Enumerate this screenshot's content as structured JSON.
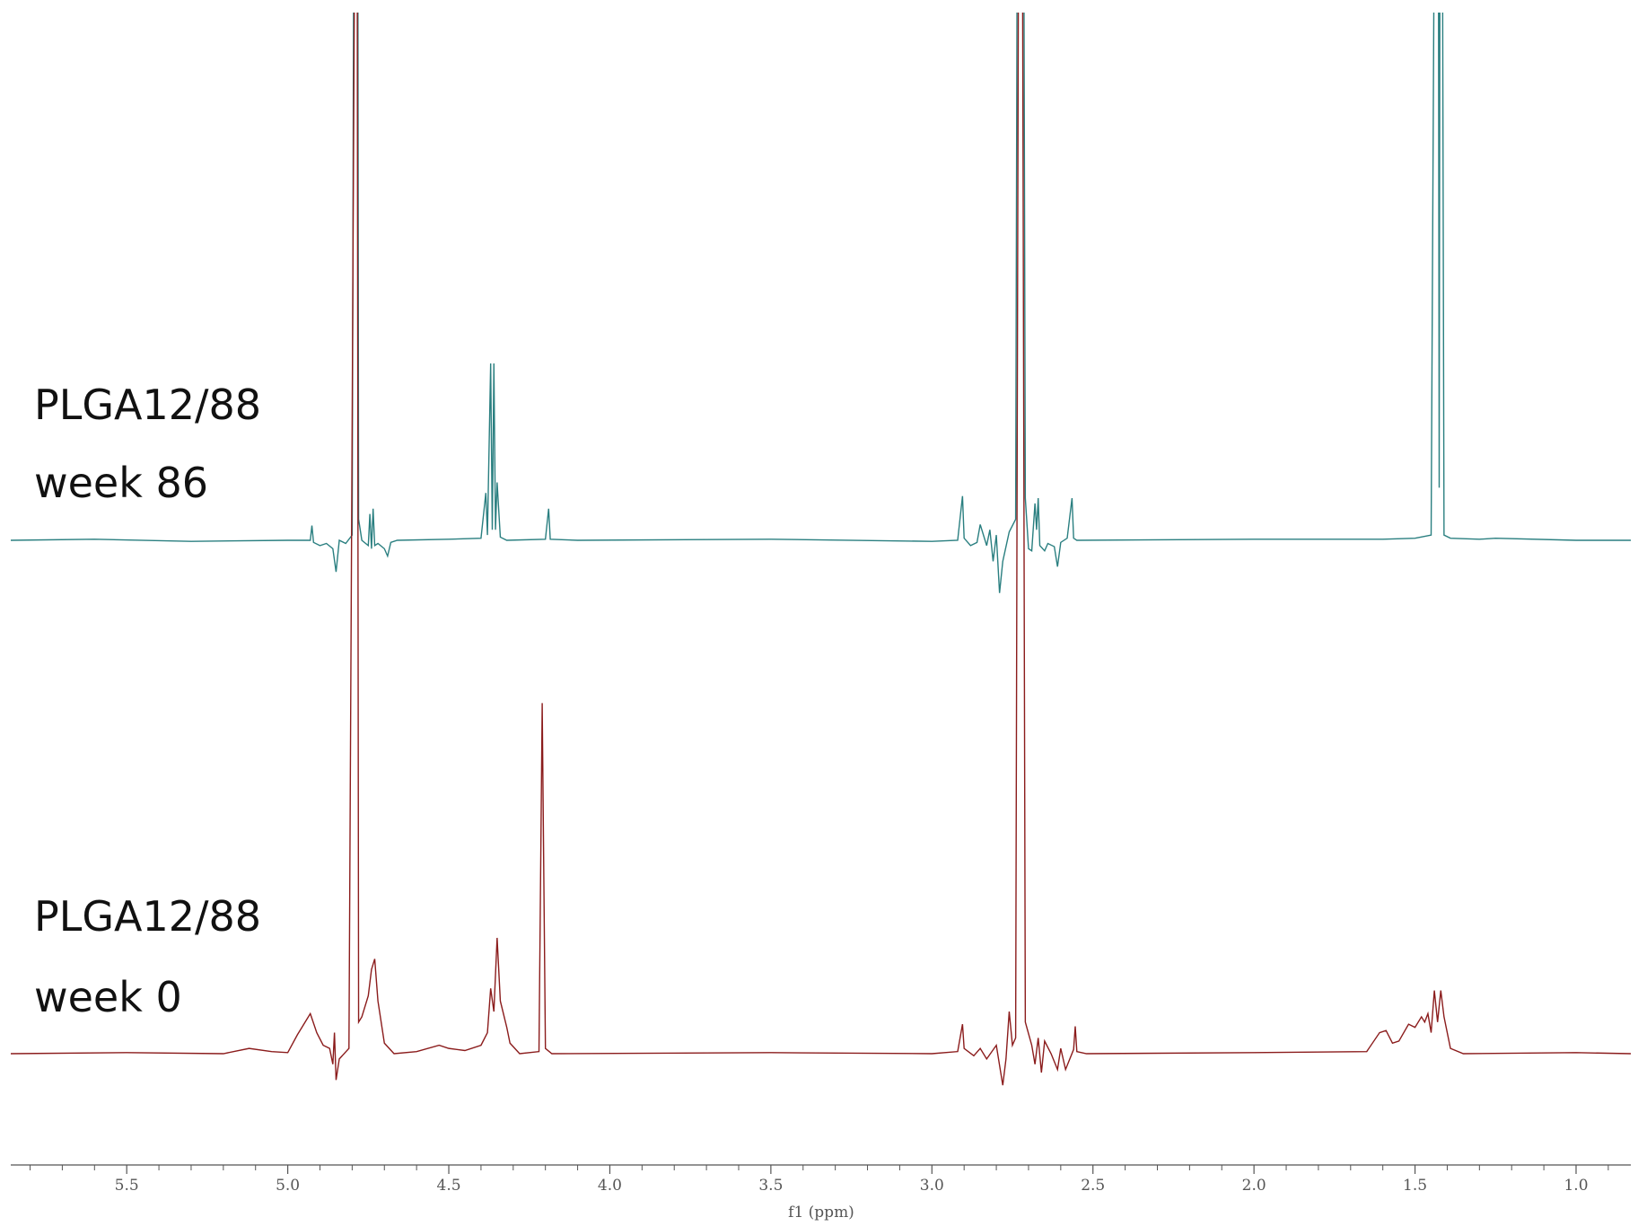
{
  "chart_data": {
    "type": "line",
    "xlabel": "f1 (ppm)",
    "xlim": [
      5.86,
      0.83
    ],
    "xticks": [
      5.5,
      {
        "value": 5,
        "label": "5.0"
      },
      4.5,
      {
        "value": 4,
        "label": "4.0"
      },
      3.5,
      {
        "value": 3,
        "label": "3.0"
      },
      2.5,
      {
        "value": 2,
        "label": "2.0"
      },
      1.5,
      {
        "value": 1,
        "label": "1.0"
      }
    ],
    "xminorticks": [
      5.8,
      5.7,
      5.6,
      5.4,
      5.3,
      5.2,
      5.1,
      4.9,
      4.8,
      4.7,
      4.6,
      4.4,
      4.3,
      4.2,
      4.1,
      3.9,
      3.8,
      3.7,
      3.6,
      3.4,
      3.3,
      3.2,
      3.1,
      2.9,
      2.8,
      2.7,
      2.6,
      2.4,
      2.3,
      2.2,
      2.1,
      1.9,
      1.8,
      1.7,
      1.6,
      1.4,
      1.3,
      1.2,
      1.1,
      0.9
    ],
    "series": [
      {
        "label": [
          "PLGA12/88",
          "week 86"
        ],
        "color": "#2a7f80",
        "x": [
          5.86,
          5.6,
          5.3,
          5.0,
          4.93,
          4.925,
          4.92,
          4.9,
          4.88,
          4.86,
          4.85,
          4.84,
          4.82,
          4.8,
          4.79,
          4.785,
          4.78,
          4.77,
          4.75,
          4.745,
          4.74,
          4.735,
          4.73,
          4.72,
          4.7,
          4.69,
          4.68,
          4.66,
          4.5,
          4.4,
          4.385,
          4.38,
          4.37,
          4.365,
          4.36,
          4.355,
          4.35,
          4.34,
          4.32,
          4.2,
          4.19,
          4.185,
          4.1,
          3.5,
          3.0,
          2.92,
          2.905,
          2.9,
          2.88,
          2.86,
          2.85,
          2.83,
          2.82,
          2.81,
          2.8,
          2.79,
          2.78,
          2.76,
          2.74,
          2.73,
          2.72,
          2.71,
          2.7,
          2.69,
          2.68,
          2.675,
          2.67,
          2.665,
          2.65,
          2.64,
          2.62,
          2.61,
          2.6,
          2.58,
          2.565,
          2.56,
          2.55,
          2.0,
          1.6,
          1.5,
          1.45,
          1.43,
          1.425,
          1.42,
          1.41,
          1.39,
          1.3,
          1.25,
          1.0,
          0.83
        ],
        "values": [
          0,
          1,
          -1,
          0,
          0,
          14,
          -2,
          -5,
          -3,
          -8,
          -30,
          0,
          -3,
          5,
          1200,
          1200,
          20,
          0,
          -5,
          25,
          -8,
          30,
          -5,
          -3,
          -8,
          -15,
          -2,
          0,
          1,
          2,
          45,
          5,
          168,
          10,
          168,
          10,
          55,
          3,
          0,
          1,
          30,
          1,
          0,
          1,
          -1,
          0,
          42,
          2,
          -5,
          -2,
          15,
          -5,
          10,
          -20,
          5,
          -50,
          -20,
          8,
          20,
          1200,
          1200,
          40,
          -8,
          -10,
          35,
          10,
          40,
          -5,
          -10,
          -3,
          -6,
          -25,
          -2,
          2,
          40,
          2,
          0,
          1,
          1,
          2,
          5,
          1200,
          50,
          1200,
          5,
          2,
          1,
          2,
          0,
          0
        ]
      },
      {
        "label": [
          "PLGA12/88",
          "week 0"
        ],
        "color": "#8b1c1c",
        "x": [
          5.86,
          5.5,
          5.2,
          5.12,
          5.05,
          5.0,
          4.97,
          4.95,
          4.93,
          4.91,
          4.89,
          4.87,
          4.86,
          4.855,
          4.85,
          4.84,
          4.81,
          4.79,
          4.785,
          4.78,
          4.77,
          4.75,
          4.74,
          4.73,
          4.72,
          4.7,
          4.67,
          4.6,
          4.53,
          4.5,
          4.45,
          4.4,
          4.38,
          4.37,
          4.36,
          4.35,
          4.34,
          4.32,
          4.31,
          4.28,
          4.22,
          4.21,
          4.2,
          4.18,
          3.5,
          3.0,
          2.92,
          2.905,
          2.9,
          2.87,
          2.85,
          2.83,
          2.8,
          2.78,
          2.77,
          2.76,
          2.75,
          2.74,
          2.73,
          2.72,
          2.71,
          2.69,
          2.68,
          2.67,
          2.66,
          2.65,
          2.63,
          2.61,
          2.6,
          2.585,
          2.56,
          2.555,
          2.55,
          2.52,
          2.0,
          1.65,
          1.61,
          1.59,
          1.57,
          1.55,
          1.52,
          1.5,
          1.48,
          1.47,
          1.46,
          1.45,
          1.44,
          1.43,
          1.42,
          1.41,
          1.39,
          1.35,
          1.0,
          0.83
        ],
        "values": [
          0,
          1,
          0,
          5,
          2,
          1,
          18,
          28,
          38,
          20,
          8,
          5,
          -10,
          20,
          -25,
          -5,
          5,
          1200,
          1200,
          30,
          35,
          55,
          80,
          90,
          50,
          10,
          0,
          2,
          8,
          5,
          3,
          8,
          20,
          62,
          40,
          110,
          50,
          25,
          10,
          0,
          2,
          333,
          5,
          0,
          1,
          0,
          2,
          28,
          5,
          -2,
          5,
          -5,
          8,
          -30,
          -5,
          40,
          8,
          15,
          1200,
          1200,
          30,
          8,
          -10,
          15,
          -18,
          12,
          0,
          -15,
          5,
          -15,
          4,
          26,
          2,
          0,
          1,
          2,
          20,
          22,
          10,
          12,
          28,
          25,
          35,
          30,
          38,
          20,
          60,
          30,
          60,
          35,
          5,
          0,
          1,
          0
        ]
      }
    ]
  }
}
